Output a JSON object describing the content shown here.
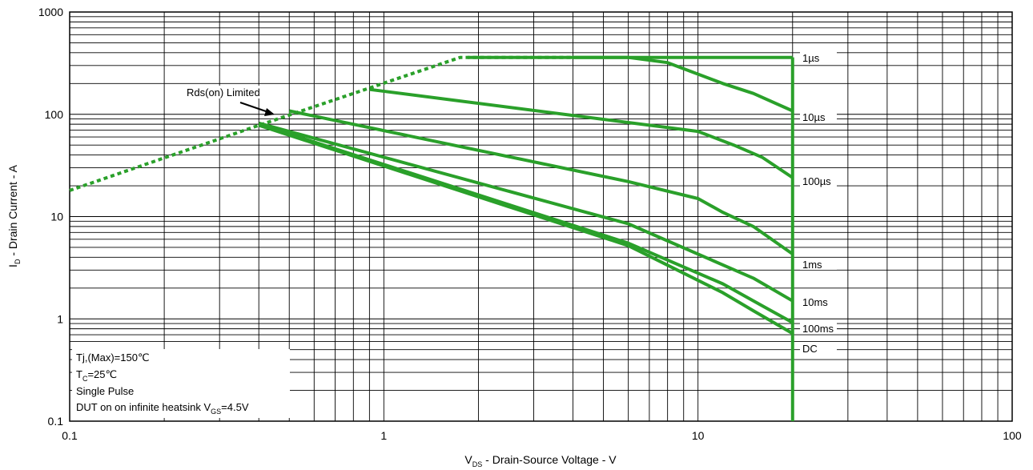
{
  "chart_data": {
    "type": "line",
    "x_scale": "log",
    "y_scale": "log",
    "xlim": [
      0.1,
      100
    ],
    "ylim": [
      0.1,
      1000
    ],
    "grid": true,
    "x_ticks": [
      "0.1",
      "1",
      "10",
      "100"
    ],
    "y_ticks": [
      "0.1",
      "1",
      "10",
      "100",
      "1000"
    ],
    "xlabel": {
      "main": "V",
      "sub": "DS",
      "rest": " - Drain-Source Voltage - V"
    },
    "ylabel": {
      "main": "I",
      "sub": "D",
      "rest": " - Drain Current - A"
    },
    "annotations": {
      "rds": "Rds(on) Limited",
      "tj": "Tj,(Max)=150℃",
      "tc_main": "T",
      "tc_sub": "C",
      "tc_rest": "=25℃",
      "pulse": "Single Pulse",
      "dut_main": "DUT on on infinite heatsink V",
      "dut_sub": "GS",
      "dut_rest": "=4.5V"
    },
    "line_color": "#2aa02a",
    "rds_limit": {
      "name": "Rds(on) Limited",
      "x": [
        0.1,
        0.41,
        1.75,
        4.0
      ],
      "y": [
        18,
        80,
        360,
        360
      ]
    },
    "series": [
      {
        "name": "1µs",
        "x": [
          4.0,
          20.0
        ],
        "y": [
          360,
          360
        ]
      },
      {
        "name": "10µs",
        "x": [
          1.85,
          6.0,
          8.0,
          12.0,
          15.0,
          20.0
        ],
        "y": [
          360,
          360,
          320,
          200,
          160,
          108
        ]
      },
      {
        "name": "100µs",
        "x": [
          0.9,
          10.0,
          13.0,
          16.0,
          20.0
        ],
        "y": [
          175,
          68,
          50,
          38,
          24
        ]
      },
      {
        "name": "1ms",
        "x": [
          0.5,
          6.0,
          10.0,
          12.0,
          15.0,
          20.0
        ],
        "y": [
          108,
          22,
          15,
          11,
          8,
          4.3
        ]
      },
      {
        "name": "10ms",
        "x": [
          0.4,
          6.0,
          15.0,
          20.0
        ],
        "y": [
          82,
          8.5,
          2.5,
          1.5
        ]
      },
      {
        "name": "100ms",
        "x": [
          0.4,
          6.0,
          12.0,
          15.0,
          20.0
        ],
        "y": [
          80,
          5.5,
          2.2,
          1.5,
          0.92
        ]
      },
      {
        "name": "DC",
        "x": [
          0.4,
          6.0,
          12.0,
          15.0,
          20.0
        ],
        "y": [
          78,
          5.2,
          1.8,
          1.2,
          0.72
        ]
      }
    ],
    "vertical_limit": {
      "x": 20.0,
      "y": [
        0.1,
        360
      ]
    },
    "series_labels": [
      "1µs",
      "10µs",
      "100µs",
      "1ms",
      "10ms",
      "100ms",
      "DC"
    ]
  }
}
